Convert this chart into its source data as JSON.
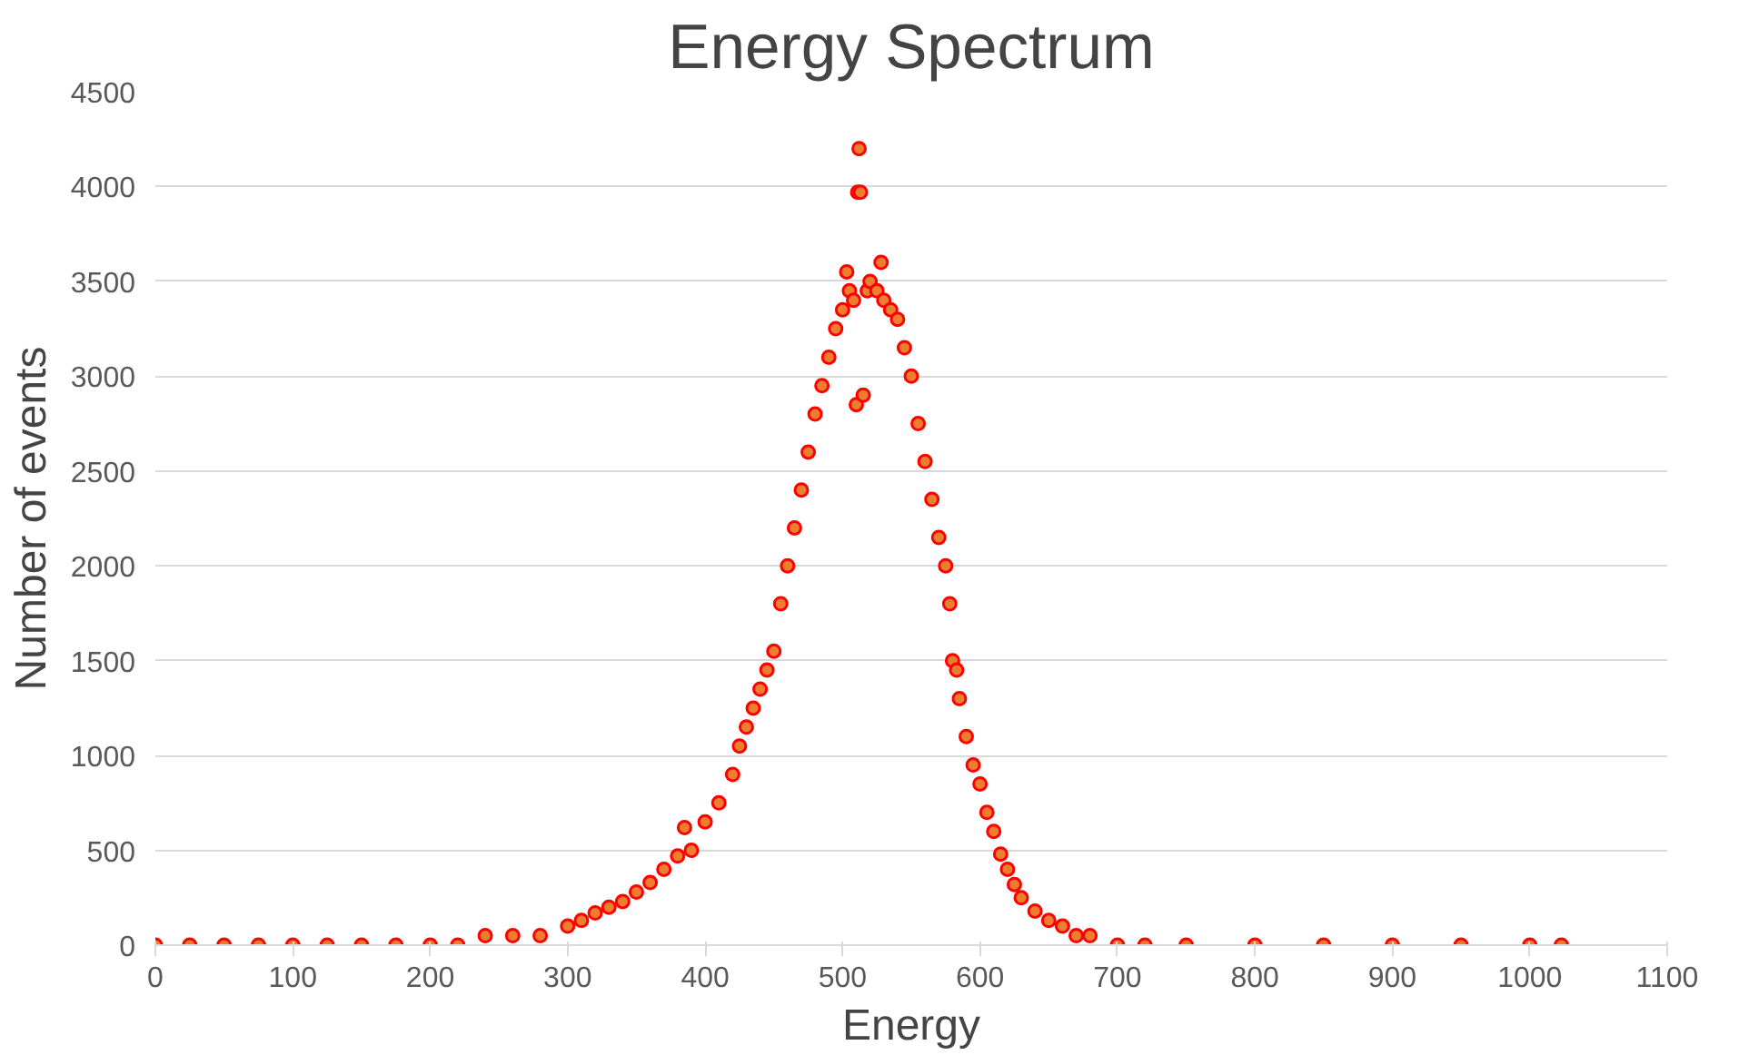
{
  "chart_data": {
    "type": "scatter",
    "title": "Energy Spectrum",
    "xlabel": "Energy",
    "ylabel": "Number of events",
    "xlim": [
      0,
      1100
    ],
    "xticks": [
      0,
      100,
      200,
      300,
      400,
      500,
      600,
      700,
      800,
      900,
      1000,
      1100
    ],
    "ylim": [
      0,
      4500
    ],
    "yticks": [
      0,
      500,
      1000,
      1500,
      2000,
      2500,
      3000,
      3500,
      4000,
      4500
    ],
    "grid": "y",
    "marker": "circle",
    "series": [
      {
        "color": "#ff0000",
        "x": [
          0,
          25,
          50,
          75,
          100,
          125,
          150,
          175,
          200,
          220,
          240,
          260,
          280,
          300,
          310,
          320,
          330,
          340,
          350,
          360,
          370,
          380,
          385,
          390,
          400,
          410,
          420,
          425,
          430,
          435,
          440,
          445,
          450,
          455,
          460,
          465,
          470,
          475,
          480,
          485,
          490,
          495,
          500,
          503,
          505,
          508,
          510,
          511,
          512,
          513,
          515,
          518,
          520,
          525,
          528,
          530,
          535,
          540,
          545,
          550,
          555,
          560,
          565,
          570,
          575,
          578,
          580,
          583,
          585,
          590,
          595,
          600,
          605,
          610,
          615,
          620,
          625,
          630,
          640,
          650,
          660,
          670,
          680,
          700,
          720,
          750,
          800,
          850,
          900,
          950,
          1000,
          1023
        ],
        "values": [
          0,
          0,
          0,
          0,
          0,
          0,
          0,
          0,
          0,
          0,
          50,
          50,
          50,
          100,
          130,
          170,
          200,
          230,
          280,
          330,
          400,
          470,
          620,
          500,
          650,
          750,
          900,
          1050,
          1150,
          1250,
          1350,
          1450,
          1550,
          1800,
          2000,
          2200,
          2400,
          2600,
          2800,
          2950,
          3100,
          3250,
          3350,
          3550,
          3450,
          3400,
          2850,
          3970,
          4200,
          3970,
          2900,
          3450,
          3500,
          3450,
          3600,
          3400,
          3350,
          3300,
          3150,
          3000,
          2750,
          2550,
          2350,
          2150,
          2000,
          1800,
          1500,
          1450,
          1300,
          1100,
          950,
          850,
          700,
          600,
          480,
          400,
          320,
          250,
          180,
          130,
          100,
          50,
          50,
          0,
          0,
          0,
          0,
          0,
          0,
          0,
          0,
          0
        ]
      }
    ]
  }
}
